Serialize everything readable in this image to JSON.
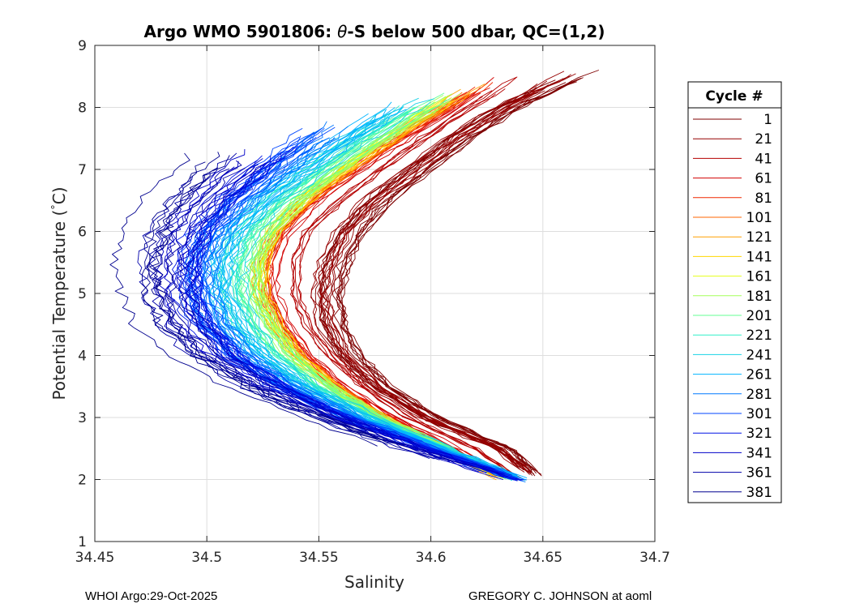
{
  "chart_data": {
    "type": "line",
    "title_prefix": "Argo WMO 5901806: ",
    "title_theta": "θ",
    "title_suffix": "-S below 500 dbar,  QC=(1,2)",
    "xlabel": "Salinity",
    "ylabel_prefix": "Potential Temperature (",
    "ylabel_deg": "°",
    "ylabel_suffix": "C)",
    "xlim": [
      34.45,
      34.7
    ],
    "ylim": [
      1,
      9
    ],
    "xticks": [
      34.45,
      34.5,
      34.55,
      34.6,
      34.65,
      34.7
    ],
    "xtick_labels": [
      "34.45",
      "34.5",
      "34.55",
      "34.6",
      "34.65",
      "34.7"
    ],
    "yticks": [
      1,
      2,
      3,
      4,
      5,
      6,
      7,
      8,
      9
    ],
    "ytick_labels": [
      "1",
      "2",
      "3",
      "4",
      "5",
      "6",
      "7",
      "8",
      "9"
    ],
    "grid": true,
    "legend_title": "Cycle #",
    "legend_position": "outside-right",
    "series": [
      {
        "name": "1",
        "color": "#7f0000"
      },
      {
        "name": "21",
        "color": "#960000"
      },
      {
        "name": "41",
        "color": "#b40000"
      },
      {
        "name": "61",
        "color": "#d20000"
      },
      {
        "name": "81",
        "color": "#f02800"
      },
      {
        "name": "101",
        "color": "#ff6400"
      },
      {
        "name": "121",
        "color": "#ffa000"
      },
      {
        "name": "141",
        "color": "#ffd700"
      },
      {
        "name": "161",
        "color": "#e6ff19"
      },
      {
        "name": "181",
        "color": "#a5ff5a"
      },
      {
        "name": "201",
        "color": "#64ff96"
      },
      {
        "name": "221",
        "color": "#30f0c8"
      },
      {
        "name": "241",
        "color": "#1ad2e6"
      },
      {
        "name": "261",
        "color": "#00b4ff"
      },
      {
        "name": "281",
        "color": "#0078ff"
      },
      {
        "name": "301",
        "color": "#0046ff"
      },
      {
        "name": "321",
        "color": "#0014e6"
      },
      {
        "name": "341",
        "color": "#0000c8"
      },
      {
        "name": "361",
        "color": "#0000aa"
      },
      {
        "name": "381",
        "color": "#00008f"
      }
    ],
    "envelopes": [
      {
        "name": "1",
        "color": "#7f0000",
        "count": 14,
        "theta": [
          2.05,
          2.5,
          3,
          3.5,
          4,
          4.5,
          5,
          5.5,
          6,
          6.5,
          7,
          7.5,
          8,
          8.6
        ],
        "sal": [
          34.648,
          34.633,
          34.6,
          34.578,
          34.564,
          34.557,
          34.555,
          34.558,
          34.565,
          34.577,
          34.595,
          34.613,
          34.635,
          34.67
        ],
        "spread": 0.006
      },
      {
        "name": "21",
        "color": "#960000",
        "count": 10,
        "theta": [
          2.05,
          2.5,
          3,
          3.5,
          4,
          4.5,
          5,
          5.5,
          6,
          6.5,
          7,
          7.5,
          8,
          8.6
        ],
        "sal": [
          34.646,
          34.63,
          34.597,
          34.575,
          34.561,
          34.553,
          34.551,
          34.554,
          34.561,
          34.573,
          34.592,
          34.61,
          34.632,
          34.664
        ],
        "spread": 0.005
      },
      {
        "name": "41",
        "color": "#b40000",
        "count": 6,
        "theta": [
          2.0,
          2.5,
          3,
          3.5,
          4,
          4.5,
          5,
          5.5,
          6,
          6.5,
          7,
          7.5,
          8,
          8.5
        ],
        "sal": [
          34.64,
          34.62,
          34.59,
          34.57,
          34.555,
          34.545,
          34.54,
          34.54,
          34.545,
          34.56,
          34.578,
          34.597,
          34.618,
          34.64
        ],
        "spread": 0.004
      },
      {
        "name": "61",
        "color": "#d20000",
        "count": 6,
        "theta": [
          2.0,
          2.5,
          3,
          3.5,
          4,
          4.5,
          5,
          5.5,
          6,
          6.5,
          7,
          7.5,
          8,
          8.5
        ],
        "sal": [
          34.635,
          34.612,
          34.585,
          34.562,
          34.547,
          34.537,
          34.531,
          34.531,
          34.537,
          34.551,
          34.57,
          34.59,
          34.612,
          34.633
        ],
        "spread": 0.004
      },
      {
        "name": "81",
        "color": "#f02800",
        "count": 5,
        "theta": [
          2.0,
          2.5,
          3,
          3.5,
          4,
          4.5,
          5,
          5.5,
          6,
          6.5,
          7,
          7.5,
          8,
          8.4
        ],
        "sal": [
          34.632,
          34.608,
          34.58,
          34.558,
          34.543,
          34.532,
          34.526,
          34.526,
          34.532,
          34.546,
          34.565,
          34.585,
          34.607,
          34.626
        ],
        "spread": 0.004
      },
      {
        "name": "101",
        "color": "#ff6400",
        "count": 5,
        "theta": [
          2.0,
          2.5,
          3,
          3.5,
          4,
          4.5,
          5,
          5.5,
          6,
          6.5,
          7,
          7.5,
          8,
          8.4
        ],
        "sal": [
          34.631,
          34.606,
          34.578,
          34.557,
          34.541,
          34.53,
          34.524,
          34.524,
          34.53,
          34.544,
          34.563,
          34.583,
          34.605,
          34.624
        ],
        "spread": 0.004
      },
      {
        "name": "121",
        "color": "#ffa000",
        "count": 4,
        "theta": [
          2.0,
          2.5,
          3,
          3.5,
          4,
          4.5,
          5,
          5.5,
          6,
          6.5,
          7,
          7.5,
          8,
          8.4
        ],
        "sal": [
          34.63,
          34.605,
          34.577,
          34.556,
          34.54,
          34.529,
          34.523,
          34.523,
          34.529,
          34.543,
          34.562,
          34.582,
          34.603,
          34.622
        ],
        "spread": 0.004
      },
      {
        "name": "141",
        "color": "#ffd700",
        "count": 5,
        "theta": [
          2.0,
          2.5,
          3,
          3.5,
          4,
          4.5,
          5,
          5.5,
          6,
          6.5,
          7,
          7.5,
          8,
          8.3
        ],
        "sal": [
          34.633,
          34.607,
          34.578,
          34.556,
          34.54,
          34.53,
          34.524,
          34.524,
          34.53,
          34.543,
          34.561,
          34.581,
          34.602,
          34.617
        ],
        "spread": 0.004
      },
      {
        "name": "161",
        "color": "#e6ff19",
        "count": 5,
        "theta": [
          2.0,
          2.5,
          3,
          3.5,
          4,
          4.5,
          5,
          5.5,
          6,
          6.5,
          7,
          7.5,
          8,
          8.3
        ],
        "sal": [
          34.632,
          34.606,
          34.577,
          34.555,
          34.539,
          34.529,
          34.523,
          34.523,
          34.529,
          34.542,
          34.56,
          34.58,
          34.601,
          34.616
        ],
        "spread": 0.004
      },
      {
        "name": "181",
        "color": "#a5ff5a",
        "count": 8,
        "theta": [
          2.0,
          2.5,
          3,
          3.5,
          4,
          4.5,
          5,
          5.5,
          6,
          6.5,
          7,
          7.5,
          8,
          8.3
        ],
        "sal": [
          34.635,
          34.607,
          34.577,
          34.554,
          34.537,
          34.527,
          34.521,
          34.521,
          34.527,
          34.54,
          34.558,
          34.578,
          34.6,
          34.614
        ],
        "spread": 0.005
      },
      {
        "name": "201",
        "color": "#64ff96",
        "count": 10,
        "theta": [
          2.0,
          2.5,
          3,
          3.5,
          4,
          4.5,
          5,
          5.5,
          6,
          6.5,
          7,
          7.5,
          8,
          8.3
        ],
        "sal": [
          34.636,
          34.607,
          34.576,
          34.552,
          34.535,
          34.524,
          34.518,
          34.518,
          34.524,
          34.537,
          34.555,
          34.575,
          34.597,
          34.612
        ],
        "spread": 0.006
      },
      {
        "name": "221",
        "color": "#30f0c8",
        "count": 8,
        "theta": [
          1.98,
          2.5,
          3,
          3.5,
          4,
          4.5,
          5,
          5.5,
          6,
          6.5,
          7,
          7.5,
          8,
          8.2
        ],
        "sal": [
          34.64,
          34.606,
          34.573,
          34.547,
          34.529,
          34.518,
          34.512,
          34.512,
          34.518,
          34.531,
          34.549,
          34.569,
          34.591,
          34.6
        ],
        "spread": 0.007
      },
      {
        "name": "241",
        "color": "#1ad2e6",
        "count": 9,
        "theta": [
          1.98,
          2.5,
          3,
          3.5,
          4,
          4.5,
          5,
          5.5,
          6,
          6.5,
          7,
          7.5,
          8,
          8.2
        ],
        "sal": [
          34.642,
          34.606,
          34.572,
          34.545,
          34.526,
          34.515,
          34.509,
          34.509,
          34.515,
          34.528,
          34.546,
          34.566,
          34.588,
          34.598
        ],
        "spread": 0.008
      },
      {
        "name": "261",
        "color": "#00b4ff",
        "count": 9,
        "theta": [
          1.97,
          2.5,
          3,
          3.5,
          4,
          4.5,
          5,
          5.5,
          6,
          6.5,
          7,
          7.5,
          8,
          8.1
        ],
        "sal": [
          34.643,
          34.604,
          34.569,
          34.541,
          34.522,
          34.51,
          34.504,
          34.504,
          34.51,
          34.523,
          34.541,
          34.561,
          34.582,
          34.587
        ],
        "spread": 0.008
      },
      {
        "name": "281",
        "color": "#0078ff",
        "count": 12,
        "theta": [
          1.97,
          2.5,
          3,
          3.5,
          4,
          4.5,
          5,
          5.5,
          6,
          6.5,
          7,
          7.5,
          7.8
        ],
        "sal": [
          34.642,
          34.601,
          34.565,
          34.536,
          34.516,
          34.504,
          34.498,
          34.498,
          34.504,
          34.516,
          34.533,
          34.551,
          34.561
        ],
        "spread": 0.008
      },
      {
        "name": "301",
        "color": "#0046ff",
        "count": 12,
        "theta": [
          1.97,
          2.5,
          3,
          3.5,
          4,
          4.5,
          5,
          5.5,
          6,
          6.5,
          7,
          7.5,
          7.7
        ],
        "sal": [
          34.641,
          34.599,
          34.562,
          34.533,
          34.512,
          34.5,
          34.494,
          34.494,
          34.5,
          34.511,
          34.527,
          34.544,
          34.551
        ],
        "spread": 0.008
      },
      {
        "name": "321",
        "color": "#0014e6",
        "count": 10,
        "theta": [
          1.97,
          2.5,
          3,
          3.5,
          4,
          4.5,
          5,
          5.5,
          6,
          6.5,
          7,
          7.4
        ],
        "sal": [
          34.64,
          34.597,
          34.56,
          34.531,
          34.51,
          34.497,
          34.491,
          34.491,
          34.496,
          34.507,
          34.522,
          34.536
        ],
        "spread": 0.008
      },
      {
        "name": "341",
        "color": "#0000c8",
        "count": 8,
        "theta": [
          2.0,
          2.5,
          3,
          3.5,
          4,
          4.5,
          5,
          5.5,
          6,
          6.5,
          7,
          7.4
        ],
        "sal": [
          34.636,
          34.594,
          34.557,
          34.527,
          34.505,
          34.492,
          34.486,
          34.485,
          34.49,
          34.5,
          34.515,
          34.528
        ],
        "spread": 0.009
      },
      {
        "name": "361",
        "color": "#0000aa",
        "count": 6,
        "theta": [
          2.2,
          2.5,
          3,
          3.5,
          4,
          4.5,
          5,
          5.5,
          6,
          6.5,
          7,
          7.3
        ],
        "sal": [
          34.615,
          34.59,
          34.553,
          34.522,
          34.5,
          34.487,
          34.481,
          34.48,
          34.484,
          34.493,
          34.507,
          34.516
        ],
        "spread": 0.01
      },
      {
        "name": "381",
        "color": "#00008f",
        "count": 6,
        "theta": [
          2.5,
          3,
          3.5,
          4,
          4.5,
          5,
          5.5,
          6,
          6.5,
          7,
          7.3
        ],
        "sal": [
          34.585,
          34.548,
          34.515,
          34.492,
          34.478,
          34.472,
          34.47,
          34.474,
          34.482,
          34.495,
          34.505
        ],
        "spread": 0.011
      }
    ]
  },
  "footer": {
    "left": "WHOI Argo:29-Oct-2025",
    "right": "GREGORY C. JOHNSON at aoml"
  }
}
